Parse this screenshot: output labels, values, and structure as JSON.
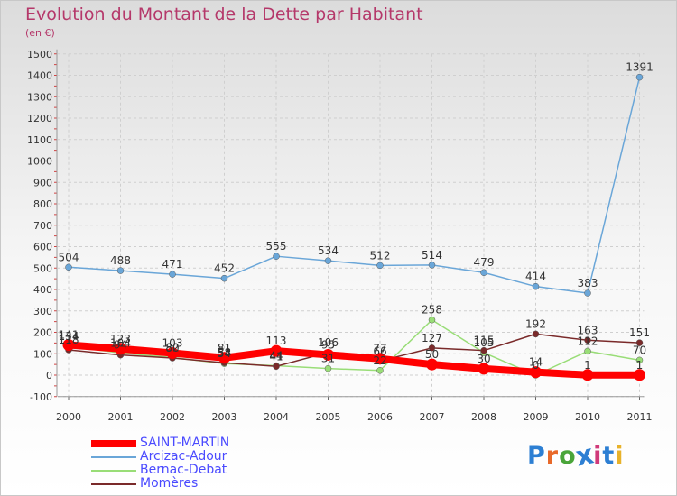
{
  "title": "Evolution du Montant de la Dette par Habitant",
  "subtitle": "(en €)",
  "logo": {
    "text": "Proxiti",
    "colors": [
      "#2d7fd3",
      "#e8692a",
      "#4aa53a",
      "#2d7fd3",
      "#d03a7a",
      "#2d7fd3",
      "#e8b22a"
    ]
  },
  "chart_data": {
    "type": "line",
    "x": [
      "2000",
      "2001",
      "2002",
      "2003",
      "2004",
      "2005",
      "2006",
      "2007",
      "2008",
      "2009",
      "2010",
      "2011"
    ],
    "y_ticks": [
      "-100",
      "0",
      "100",
      "200",
      "300",
      "400",
      "500",
      "600",
      "700",
      "800",
      "900",
      "1000",
      "1100",
      "1200",
      "1300",
      "1400",
      "1500"
    ],
    "ylim": [
      -100,
      1500
    ],
    "grid": true,
    "series": [
      {
        "name": "SAINT-MARTIN",
        "color": "#ff0000",
        "values": [
          141,
          123,
          103,
          81,
          113,
          95,
          77,
          50,
          30,
          14,
          1,
          1
        ],
        "labels": [
          "141",
          "123",
          "103",
          "81",
          "113",
          "95",
          "77",
          "50",
          "30",
          "14",
          "1",
          "1"
        ]
      },
      {
        "name": "Arcizac-Adour",
        "color": "#6aa6d8",
        "values": [
          504,
          488,
          471,
          452,
          555,
          534,
          512,
          514,
          479,
          414,
          383,
          1391
        ],
        "labels": [
          "504",
          "488",
          "471",
          "452",
          "555",
          "534",
          "512",
          "514",
          "479",
          "414",
          "383",
          "1391"
        ]
      },
      {
        "name": "Bernac-Debat",
        "color": "#99dd77",
        "values": [
          134,
          104,
          82,
          54,
          44,
          31,
          22,
          258,
          105,
          0,
          112,
          70
        ],
        "labels": [
          "134",
          "104",
          "82",
          "54",
          "44",
          "31",
          "22",
          "258",
          "105",
          "0",
          "112",
          "70"
        ]
      },
      {
        "name": "Momères",
        "color": "#7a2a2a",
        "values": [
          118,
          94,
          80,
          58,
          41,
          106,
          66,
          127,
          115,
          192,
          163,
          151
        ],
        "labels": [
          "118",
          "94",
          "80",
          "58",
          "41",
          "106",
          "66",
          "127",
          "115",
          "192",
          "163",
          "151"
        ]
      }
    ]
  }
}
